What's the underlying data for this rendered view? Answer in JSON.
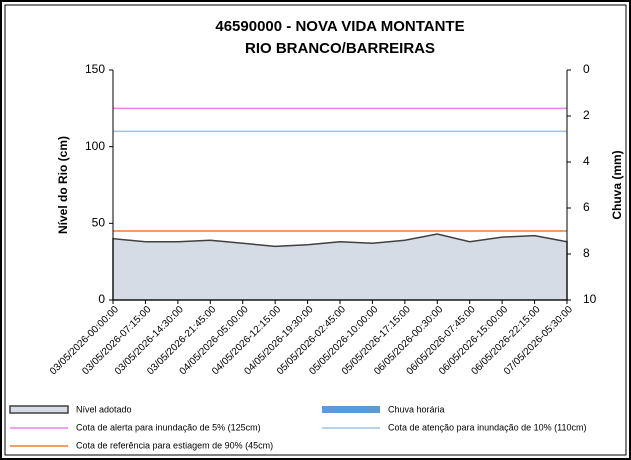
{
  "chart_data": {
    "type": "area",
    "title": "46590000 - NOVA VIDA MONTANTE",
    "subtitle": "RIO BRANCO/BARREIRAS",
    "y_label": "Nível do Rio (cm)",
    "y2_label": "Chuva (mm)",
    "categories": [
      "03/05/2026-00:00:00",
      "03/05/2026-07:15:00",
      "03/05/2026-14:30:00",
      "03/05/2026-21:45:00",
      "04/05/2026-05:00:00",
      "04/05/2026-12:15:00",
      "04/05/2026-19:30:00",
      "05/05/2026-02:45:00",
      "05/05/2026-10:00:00",
      "05/05/2026-17:15:00",
      "06/05/2026-00:30:00",
      "06/05/2026-07:45:00",
      "06/05/2026-15:00:00",
      "06/05/2026-22:15:00",
      "07/05/2026-05:30:00"
    ],
    "series": [
      {
        "name": "Nível adotado",
        "color": "#d6dce5",
        "values": [
          40,
          38,
          38,
          39,
          37,
          35,
          36,
          38,
          37,
          39,
          43,
          38,
          41,
          42,
          38
        ]
      },
      {
        "name": "Chuva horária",
        "color": "#5b9bd5",
        "axis": "y2",
        "values": [
          0,
          0,
          0,
          0,
          0,
          0,
          0,
          0,
          0,
          0,
          0,
          0,
          0,
          0,
          0
        ]
      }
    ],
    "reference_lines": [
      {
        "name": "Cota de alerta para inundação de 5% (125cm)",
        "value": 125,
        "color": "#ee82ee"
      },
      {
        "name": "Cota de atenção para inundação de 10% (110cm)",
        "value": 110,
        "color": "#9dc3e6"
      },
      {
        "name": "Cota de referência para estiagem de 90% (45cm)",
        "value": 45,
        "color": "#ed7d31"
      }
    ],
    "ylim": [
      0,
      150
    ],
    "yticks": [
      0,
      50,
      100,
      150
    ],
    "y2lim": [
      0,
      10
    ],
    "y2ticks": [
      0,
      2,
      4,
      6,
      8,
      10
    ],
    "y2_inverted": true
  }
}
